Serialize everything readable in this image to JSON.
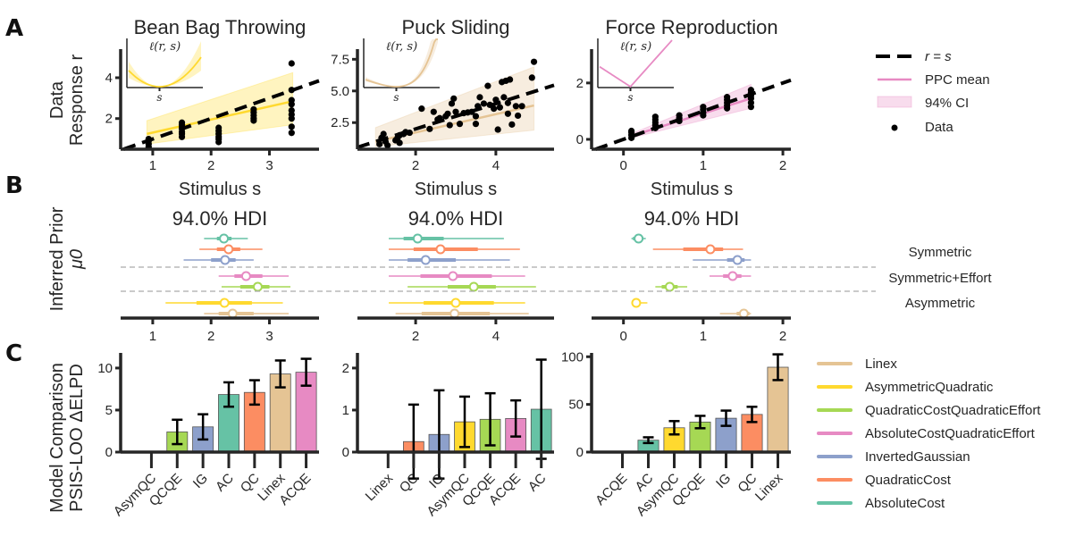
{
  "panel_letters": {
    "a": "A",
    "b": "B",
    "c": "C"
  },
  "colors": {
    "Linex": "#e5c494",
    "AsymmetricQuadratic": "#ffd92f",
    "QuadraticCostQuadraticEffort": "#a6d854",
    "AbsoluteCostQuadraticEffort": "#e78ac3",
    "InvertedGaussian": "#8da0cb",
    "QuadraticCost": "#fc8d62",
    "AbsoluteCost": "#66c2a5",
    "identity_line": "#000000",
    "axis": "#262626",
    "separator": "#aaaaaa"
  },
  "row_labels": {
    "a": [
      "Data",
      "Response r"
    ],
    "b": [
      "Inferred Prior",
      "μ0"
    ],
    "c": [
      "Model Comparison",
      "PSIS-LOO ΔELPD"
    ]
  },
  "legend_a": {
    "items": [
      {
        "label": "r = s",
        "kind": "dashed"
      },
      {
        "label": "PPC mean",
        "kind": "line"
      },
      {
        "label": "94% CI",
        "kind": "band"
      },
      {
        "label": "Data",
        "kind": "dot"
      }
    ]
  },
  "legend_c": {
    "items": [
      {
        "label": "Linex",
        "key": "Linex"
      },
      {
        "label": "AsymmetricQuadratic",
        "key": "AsymmetricQuadratic"
      },
      {
        "label": "QuadraticCostQuadraticEffort",
        "key": "QuadraticCostQuadraticEffort"
      },
      {
        "label": "AbsoluteCostQuadraticEffort",
        "key": "AbsoluteCostQuadraticEffort"
      },
      {
        "label": "InvertedGaussian",
        "key": "InvertedGaussian"
      },
      {
        "label": "QuadraticCost",
        "key": "QuadraticCost"
      },
      {
        "label": "AbsoluteCost",
        "key": "AbsoluteCost"
      }
    ]
  },
  "group_labels": [
    "Symmetric",
    "Symmetric+Effort",
    "Asymmetric"
  ],
  "chart_data": [
    {
      "type": "scatter",
      "panel": "A",
      "title": "Bean Bag Throwing",
      "xlabel": "Stimulus s",
      "ylabel": "Data Response r",
      "xticks": [
        1,
        2,
        3
      ],
      "yticks": [
        2,
        4
      ],
      "xlim": [
        0.45,
        3.85
      ],
      "ylim": [
        0.5,
        5.4
      ],
      "model": "Linex-like (AsymmetricQuadratic color)",
      "color_key": "AsymmetricQuadratic",
      "inset_label": "ℓ(r, s)",
      "inset_xtick": "s",
      "inset_shape": "parabola",
      "ppc_mean": {
        "x": [
          0.9,
          3.4
        ],
        "y": [
          1.25,
          2.85
        ]
      },
      "ci94": {
        "x": [
          0.9,
          3.4
        ],
        "lower": [
          0.75,
          1.7
        ],
        "upper": [
          1.9,
          4.25
        ]
      },
      "identity": true,
      "points": [
        [
          0.93,
          0.6
        ],
        [
          0.93,
          0.75
        ],
        [
          0.93,
          0.9
        ],
        [
          0.93,
          1.0
        ],
        [
          1.5,
          1.1
        ],
        [
          1.5,
          1.25
        ],
        [
          1.5,
          1.35
        ],
        [
          1.5,
          1.5
        ],
        [
          1.5,
          1.6
        ],
        [
          1.5,
          1.7
        ],
        [
          1.5,
          1.8
        ],
        [
          2.13,
          0.85
        ],
        [
          2.13,
          1.0
        ],
        [
          2.13,
          1.1
        ],
        [
          2.13,
          1.25
        ],
        [
          2.13,
          1.4
        ],
        [
          2.13,
          1.55
        ],
        [
          2.73,
          1.9
        ],
        [
          2.73,
          2.0
        ],
        [
          2.73,
          2.15
        ],
        [
          2.73,
          2.3
        ],
        [
          2.73,
          2.45
        ],
        [
          3.38,
          1.3
        ],
        [
          3.38,
          1.6
        ],
        [
          3.38,
          2.0
        ],
        [
          3.38,
          2.2
        ],
        [
          3.38,
          2.4
        ],
        [
          3.38,
          2.7
        ],
        [
          3.38,
          2.9
        ],
        [
          3.38,
          3.4
        ],
        [
          3.38,
          4.7
        ]
      ]
    },
    {
      "type": "scatter",
      "panel": "A",
      "title": "Puck Sliding",
      "xlabel": "Stimulus s",
      "ylabel": "",
      "xticks": [
        2,
        4
      ],
      "yticks": [
        2.5,
        5.0,
        7.5
      ],
      "ytick_labels": [
        "2.5",
        "5.0",
        "7.5"
      ],
      "xlim": [
        0.55,
        5.45
      ],
      "ylim": [
        0.4,
        8.3
      ],
      "color_key": "Linex",
      "inset_label": "ℓ(r, s)",
      "inset_xtick": "s",
      "inset_shape": "linex",
      "ppc_mean": {
        "x": [
          1.0,
          4.95
        ],
        "y": [
          1.0,
          3.85
        ]
      },
      "ci94": {
        "x": [
          1.0,
          4.95
        ],
        "lower": [
          0.6,
          1.9
        ],
        "upper": [
          2.1,
          6.9
        ]
      },
      "identity": true,
      "points": [
        [
          1.1,
          0.8
        ],
        [
          1.15,
          1.3
        ],
        [
          1.2,
          1.6
        ],
        [
          1.25,
          1.0
        ],
        [
          1.3,
          0.7
        ],
        [
          1.5,
          1.1
        ],
        [
          1.55,
          1.3
        ],
        [
          1.6,
          0.9
        ],
        [
          1.6,
          1.5
        ],
        [
          1.7,
          1.6
        ],
        [
          1.75,
          1.75
        ],
        [
          1.85,
          1.7
        ],
        [
          2.15,
          3.6
        ],
        [
          2.35,
          2.0
        ],
        [
          2.45,
          3.35
        ],
        [
          2.55,
          2.75
        ],
        [
          2.6,
          2.85
        ],
        [
          2.75,
          3.0
        ],
        [
          2.8,
          3.2
        ],
        [
          2.85,
          2.3
        ],
        [
          2.9,
          4.0
        ],
        [
          2.95,
          4.4
        ],
        [
          3.0,
          3.35
        ],
        [
          3.1,
          2.4
        ],
        [
          3.2,
          3.25
        ],
        [
          3.3,
          3.3
        ],
        [
          3.4,
          3.35
        ],
        [
          3.5,
          2.4
        ],
        [
          3.5,
          3.0
        ],
        [
          3.55,
          3.8
        ],
        [
          3.6,
          4.5
        ],
        [
          3.7,
          4.0
        ],
        [
          3.8,
          5.4
        ],
        [
          3.85,
          3.9
        ],
        [
          3.95,
          3.6
        ],
        [
          4.0,
          4.3
        ],
        [
          4.05,
          1.95
        ],
        [
          4.1,
          3.7
        ],
        [
          4.15,
          5.7
        ],
        [
          4.2,
          4.5
        ],
        [
          4.25,
          5.8
        ],
        [
          4.3,
          4.05
        ],
        [
          4.3,
          3.2
        ],
        [
          4.35,
          5.9
        ],
        [
          4.4,
          2.35
        ],
        [
          4.5,
          3.8
        ],
        [
          4.55,
          3.05
        ],
        [
          4.65,
          3.8
        ],
        [
          4.9,
          6.05
        ],
        [
          4.95,
          7.3
        ]
      ]
    },
    {
      "type": "scatter",
      "panel": "A",
      "title": "Force Reproduction",
      "xlabel": "Stimulus s",
      "ylabel": "",
      "xticks": [
        0,
        1,
        2
      ],
      "yticks": [
        0,
        2
      ],
      "xlim": [
        -0.4,
        2.1
      ],
      "ylim": [
        -0.35,
        3.2
      ],
      "color_key": "AbsoluteCostQuadraticEffort",
      "inset_label": "ℓ(r, s)",
      "inset_xtick": "s",
      "inset_shape": "absolute",
      "ppc_mean": {
        "x": [
          0.1,
          1.6
        ],
        "y": [
          0.12,
          1.45
        ]
      },
      "ci94": {
        "x": [
          0.1,
          1.6
        ],
        "lower": [
          0.05,
          1.1
        ],
        "upper": [
          0.2,
          1.95
        ]
      },
      "identity": true,
      "points": [
        [
          0.1,
          0.05
        ],
        [
          0.1,
          0.15
        ],
        [
          0.1,
          0.25
        ],
        [
          0.1,
          0.3
        ],
        [
          0.4,
          0.4
        ],
        [
          0.4,
          0.5
        ],
        [
          0.4,
          0.6
        ],
        [
          0.4,
          0.7
        ],
        [
          0.4,
          0.8
        ],
        [
          0.7,
          0.65
        ],
        [
          0.7,
          0.75
        ],
        [
          0.7,
          0.85
        ],
        [
          1.0,
          0.85
        ],
        [
          1.0,
          0.95
        ],
        [
          1.0,
          1.05
        ],
        [
          1.0,
          1.15
        ],
        [
          1.3,
          1.1
        ],
        [
          1.3,
          1.2
        ],
        [
          1.3,
          1.3
        ],
        [
          1.3,
          1.4
        ],
        [
          1.3,
          1.5
        ],
        [
          1.6,
          1.15
        ],
        [
          1.6,
          1.3
        ],
        [
          1.6,
          1.45
        ],
        [
          1.6,
          1.55
        ],
        [
          1.6,
          1.65
        ],
        [
          1.6,
          1.75
        ]
      ]
    },
    {
      "type": "forest",
      "panel": "B",
      "title": "94.0% HDI",
      "xticks": [
        1,
        2,
        3
      ],
      "xlim": [
        0.45,
        3.85
      ],
      "rows": [
        {
          "model": "AbsoluteCost",
          "mean": 2.22,
          "hdi50": [
            2.1,
            2.35
          ],
          "hdi94": [
            1.88,
            2.63
          ]
        },
        {
          "model": "QuadraticCost",
          "mean": 2.3,
          "hdi50": [
            2.1,
            2.5
          ],
          "hdi94": [
            1.8,
            2.88
          ]
        },
        {
          "model": "InvertedGaussian",
          "mean": 2.24,
          "hdi50": [
            2.0,
            2.42
          ],
          "hdi94": [
            1.53,
            2.73
          ]
        },
        {
          "model": "AbsoluteCostQuadraticEffort",
          "mean": 2.6,
          "hdi50": [
            2.4,
            2.88
          ],
          "hdi94": [
            2.13,
            3.33
          ]
        },
        {
          "model": "QuadraticCostQuadraticEffort",
          "mean": 2.8,
          "hdi50": [
            2.5,
            3.0
          ],
          "hdi94": [
            2.18,
            3.36
          ]
        },
        {
          "model": "AsymmetricQuadratic",
          "mean": 2.23,
          "hdi50": [
            1.75,
            2.7
          ],
          "hdi94": [
            1.22,
            3.23
          ]
        },
        {
          "model": "Linex",
          "mean": 2.37,
          "hdi50": [
            2.13,
            2.73
          ],
          "hdi94": [
            1.88,
            3.33
          ]
        }
      ]
    },
    {
      "type": "forest",
      "panel": "B",
      "title": "94.0% HDI",
      "xticks": [
        2,
        4
      ],
      "xlim": [
        0.55,
        5.45
      ],
      "rows": [
        {
          "model": "AbsoluteCost",
          "mean": 2.05,
          "hdi50": [
            1.7,
            2.7
          ],
          "hdi94": [
            1.33,
            4.2
          ]
        },
        {
          "model": "QuadraticCost",
          "mean": 2.62,
          "hdi50": [
            1.95,
            3.55
          ],
          "hdi94": [
            1.33,
            4.6
          ]
        },
        {
          "model": "InvertedGaussian",
          "mean": 2.25,
          "hdi50": [
            1.8,
            3.0
          ],
          "hdi94": [
            1.33,
            4.35
          ]
        },
        {
          "model": "AbsoluteCostQuadraticEffort",
          "mean": 2.93,
          "hdi50": [
            2.12,
            3.9
          ],
          "hdi94": [
            1.33,
            4.73
          ]
        },
        {
          "model": "QuadraticCostQuadraticEffort",
          "mean": 3.45,
          "hdi50": [
            2.8,
            4.0
          ],
          "hdi94": [
            1.8,
            5.0
          ]
        },
        {
          "model": "AsymmetricQuadratic",
          "mean": 3.0,
          "hdi50": [
            2.2,
            3.95
          ],
          "hdi94": [
            1.33,
            4.73
          ]
        },
        {
          "model": "Linex",
          "mean": 2.97,
          "hdi50": [
            2.15,
            3.85
          ],
          "hdi94": [
            1.5,
            4.82
          ]
        }
      ]
    },
    {
      "type": "forest",
      "panel": "B",
      "title": "94.0% HDI",
      "xticks": [
        0,
        1,
        2
      ],
      "xlim": [
        -0.4,
        2.1
      ],
      "rows": [
        {
          "model": "AbsoluteCost",
          "mean": 0.19,
          "hdi50": [
            0.12,
            0.25
          ],
          "hdi94": [
            0.1,
            0.28
          ]
        },
        {
          "model": "QuadraticCost",
          "mean": 1.09,
          "hdi50": [
            0.75,
            1.25
          ],
          "hdi94": [
            0.37,
            1.5
          ]
        },
        {
          "model": "InvertedGaussian",
          "mean": 1.43,
          "hdi50": [
            1.3,
            1.52
          ],
          "hdi94": [
            0.87,
            1.6
          ]
        },
        {
          "model": "AbsoluteCostQuadraticEffort",
          "mean": 1.37,
          "hdi50": [
            1.25,
            1.48
          ],
          "hdi94": [
            1.08,
            1.6
          ]
        },
        {
          "model": "QuadraticCostQuadraticEffort",
          "mean": 0.58,
          "hdi50": [
            0.48,
            0.68
          ],
          "hdi94": [
            0.4,
            0.8
          ]
        },
        {
          "model": "AsymmetricQuadratic",
          "mean": 0.16,
          "hdi50": [
            0.13,
            0.2
          ],
          "hdi94": [
            0.12,
            0.3
          ]
        },
        {
          "model": "Linex",
          "mean": 1.51,
          "hdi50": [
            1.42,
            1.58
          ],
          "hdi94": [
            1.21,
            1.6
          ]
        }
      ]
    },
    {
      "type": "bar",
      "panel": "C",
      "ylabel": "Model Comparison PSIS-LOO ΔELPD",
      "yticks": [
        0,
        5,
        10
      ],
      "ylim": [
        -0.2,
        11.8
      ],
      "categories": [
        "AsymQC",
        "QCQE",
        "IG",
        "AC",
        "QC",
        "Linex",
        "ACQE"
      ],
      "keys": [
        "AsymmetricQuadratic",
        "QuadraticCostQuadraticEffort",
        "InvertedGaussian",
        "AbsoluteCost",
        "QuadraticCost",
        "Linex",
        "AbsoluteCostQuadraticEffort"
      ],
      "values": [
        0,
        2.4,
        3.0,
        6.85,
        7.1,
        9.3,
        9.5
      ],
      "errors": [
        0,
        1.45,
        1.5,
        1.45,
        1.45,
        1.6,
        1.6
      ]
    },
    {
      "type": "bar",
      "panel": "C",
      "ylabel": "",
      "yticks": [
        0,
        1,
        2
      ],
      "ylim": [
        -0.02,
        2.36
      ],
      "categories": [
        "Linex",
        "QC",
        "IG",
        "AsymQC",
        "QCQE",
        "ACQE",
        "AC"
      ],
      "keys": [
        "Linex",
        "QuadraticCost",
        "InvertedGaussian",
        "AsymmetricQuadratic",
        "QuadraticCostQuadraticEffort",
        "AbsoluteCostQuadraticEffort",
        "AbsoluteCost"
      ],
      "values": [
        0,
        0.25,
        0.42,
        0.72,
        0.78,
        0.8,
        1.02
      ],
      "errors": [
        0,
        0.88,
        1.05,
        0.6,
        0.62,
        0.43,
        1.18
      ]
    },
    {
      "type": "bar",
      "panel": "C",
      "ylabel": "",
      "yticks": [
        0,
        50,
        100
      ],
      "ylim": [
        -1,
        104
      ],
      "categories": [
        "ACQE",
        "AC",
        "AsymQC",
        "QCQE",
        "IG",
        "QC",
        "Linex"
      ],
      "keys": [
        "AbsoluteCostQuadraticEffort",
        "AbsoluteCost",
        "AsymmetricQuadratic",
        "QuadraticCostQuadraticEffort",
        "InvertedGaussian",
        "QuadraticCost",
        "Linex"
      ],
      "values": [
        0,
        12.5,
        25.5,
        31.5,
        35.5,
        39.5,
        89
      ],
      "errors": [
        0,
        3,
        7,
        6.5,
        8,
        8,
        13.5
      ]
    }
  ]
}
